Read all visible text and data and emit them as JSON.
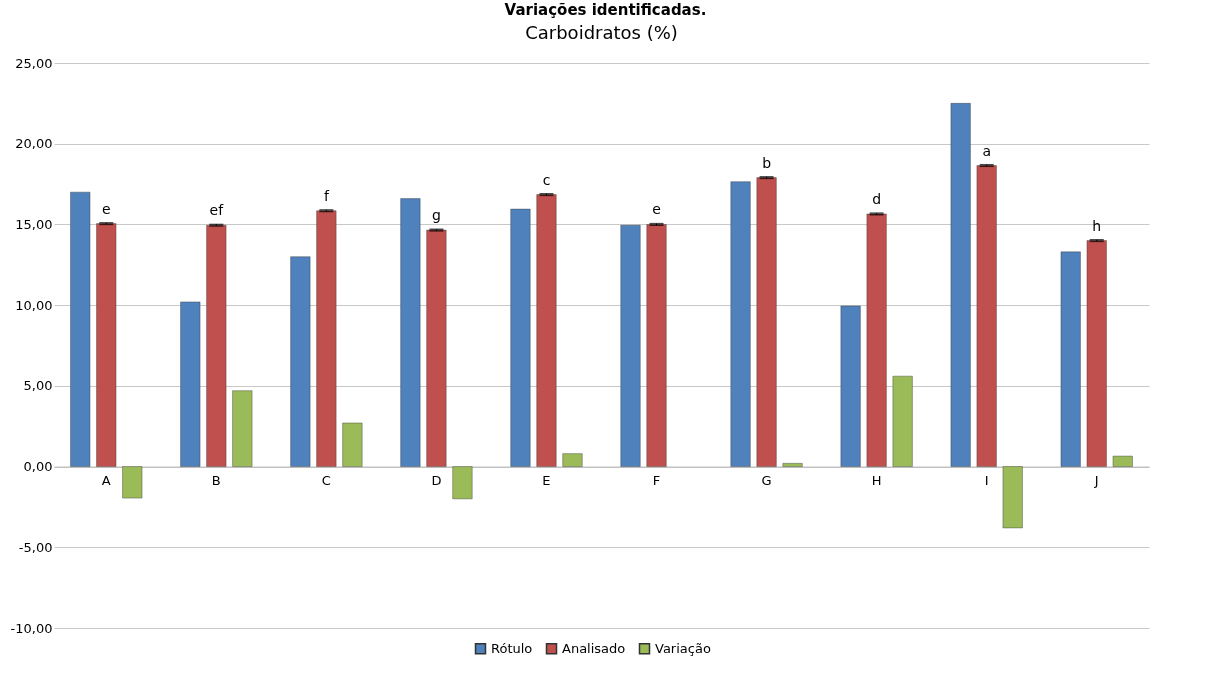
{
  "chart_data": {
    "type": "bar",
    "title": "Carboidratos (%)",
    "annotations": [
      "Variações identificadas.",
      {
        "text": "e",
        "x": "A",
        "y": 15.05
      },
      {
        "text": "ef",
        "x": "B",
        "y": 14.95
      },
      {
        "text": "f",
        "x": "C",
        "y": 15.85
      },
      {
        "text": "g",
        "x": "D",
        "y": 14.65
      },
      {
        "text": "c",
        "x": "E",
        "y": 16.85
      },
      {
        "text": "e",
        "x": "F",
        "y": 15.0
      },
      {
        "text": "b",
        "x": "G",
        "y": 17.9
      },
      {
        "text": "d",
        "x": "H",
        "y": 15.65
      },
      {
        "text": "a",
        "x": "I",
        "y": 18.65
      },
      {
        "text": "h",
        "x": "J",
        "y": 14.0
      }
    ],
    "categories": [
      "A",
      "B",
      "C",
      "D",
      "E",
      "F",
      "G",
      "H",
      "I",
      "J"
    ],
    "series": [
      {
        "name": "Rótulo",
        "color": "#4f81bd",
        "values": [
          17.0,
          10.2,
          13.0,
          16.6,
          15.95,
          14.95,
          17.65,
          9.95,
          22.5,
          13.3
        ]
      },
      {
        "name": "Analisado",
        "color": "#c0504d",
        "values": [
          15.05,
          14.95,
          15.85,
          14.65,
          16.85,
          15.0,
          17.9,
          15.65,
          18.65,
          14.0
        ],
        "errors": [
          0.05,
          0.05,
          0.05,
          0.05,
          0.05,
          0.05,
          0.05,
          0.05,
          0.05,
          0.05
        ]
      },
      {
        "name": "Variação",
        "color": "#9bbb59",
        "values": [
          -1.95,
          4.7,
          2.7,
          -2.0,
          0.8,
          null,
          0.2,
          5.6,
          -3.8,
          0.65
        ]
      }
    ],
    "ylim": [
      -10,
      25
    ],
    "yticks": [
      {
        "value": -10,
        "label": "-10,00"
      },
      {
        "value": -5,
        "label": "-5,00"
      },
      {
        "value": 0,
        "label": "0,00"
      },
      {
        "value": 5,
        "label": "5,00"
      },
      {
        "value": 10,
        "label": "10,00"
      },
      {
        "value": 15,
        "label": "15,00"
      },
      {
        "value": 20,
        "label": "20,00"
      },
      {
        "value": 25,
        "label": "25,00"
      }
    ],
    "grid": "y",
    "legend": "bottom"
  }
}
